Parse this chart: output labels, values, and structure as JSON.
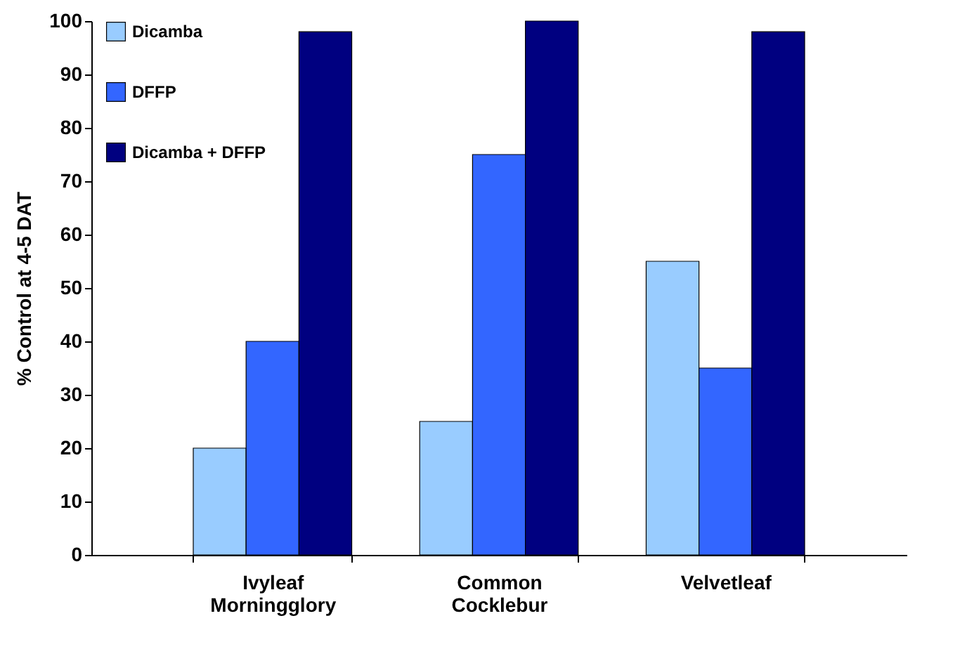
{
  "chart_data": {
    "type": "bar",
    "ylabel": "% Control at 4-5 DAT",
    "categories": [
      "Ivyleaf Morningglory",
      "Common Cocklebur",
      "Velvetleaf"
    ],
    "series": [
      {
        "name": "Dicamba",
        "color": "#99ccff",
        "values": [
          20,
          25,
          55
        ]
      },
      {
        "name": "DFFP",
        "color": "#3366ff",
        "values": [
          40,
          75,
          35
        ]
      },
      {
        "name": "Dicamba + DFFP",
        "color": "#000080",
        "values": [
          98,
          100,
          98
        ]
      }
    ],
    "ylim": [
      0,
      100
    ],
    "yticks": [
      0,
      10,
      20,
      30,
      40,
      50,
      60,
      70,
      80,
      90,
      100
    ],
    "grid": false,
    "legend": "top left"
  }
}
